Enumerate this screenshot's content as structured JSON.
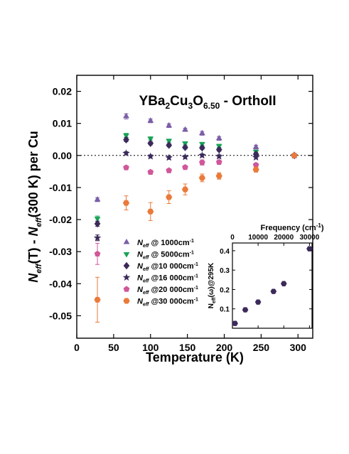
{
  "chart_data": [
    {
      "type": "scatter",
      "title": "YBa2Cu3O6.50 - OrthoII",
      "title_parts": {
        "pre": "YBa",
        "s1": "2",
        "m1": "Cu",
        "s2": "3",
        "m2": "O",
        "s3": "6.50",
        "post": " - OrthoII"
      },
      "xlabel": "Temperature (K)",
      "ylabel": {
        "n1": "N",
        "s1": "eff",
        "m1": "(T) - ",
        "n2": "N",
        "s2": "eff",
        "m2": "(300 K) per Cu"
      },
      "xlim": [
        0,
        320
      ],
      "ylim": [
        -0.057,
        0.025
      ],
      "x_ticks": [
        0,
        50,
        100,
        150,
        200,
        250,
        300
      ],
      "x_tick_labels": [
        "0",
        "50",
        "100",
        "150",
        "200",
        "250",
        "300"
      ],
      "y_ticks": [
        -0.05,
        -0.04,
        -0.03,
        -0.02,
        -0.01,
        0.0,
        0.01,
        0.02
      ],
      "y_tick_labels": [
        "-0.05",
        "-0.04",
        "-0.03",
        "-0.02",
        "-0.01",
        "0.00",
        "0.01",
        "0.02"
      ],
      "zero_line": "dotted",
      "legend_placement": "bottom-left",
      "series": [
        {
          "legend_sub": "eff",
          "legend_rest": " @ 1000cm",
          "legend_sup": "-1",
          "marker": "triangle-up",
          "color": "#7b5ea7",
          "x": [
            28,
            67,
            100,
            125,
            147,
            170,
            193,
            243,
            295
          ],
          "y": [
            -0.0138,
            0.0122,
            0.0108,
            0.0093,
            0.008,
            0.0069,
            0.0053,
            0.0026,
            0.0
          ],
          "yerr": [
            0.0006,
            0.0008,
            0.0006,
            0.0006,
            0.0005,
            0.0006,
            0.0006,
            0.0006,
            0.0004
          ]
        },
        {
          "legend_sub": "eff",
          "legend_rest": " @ 5000cm",
          "legend_sup": "-1",
          "marker": "triangle-down",
          "color": "#1aa358",
          "x": [
            28,
            67,
            100,
            125,
            147,
            170,
            193,
            243,
            295
          ],
          "y": [
            -0.0197,
            0.0063,
            0.0053,
            0.0046,
            0.0038,
            0.0036,
            0.003,
            0.0012,
            0.0
          ],
          "yerr": [
            0.0008,
            0.0006,
            0.0005,
            0.0005,
            0.0005,
            0.0005,
            0.0005,
            0.0005,
            0.0004
          ]
        },
        {
          "legend_sub": "eff",
          "legend_rest": " @10 000cm",
          "legend_sup": "-1",
          "marker": "diamond",
          "color": "#3b2a5a",
          "x": [
            28,
            67,
            100,
            125,
            147,
            170,
            193,
            243,
            295
          ],
          "y": [
            -0.0213,
            0.0049,
            0.0038,
            0.0032,
            0.0025,
            0.0024,
            0.0018,
            0.0004,
            0.0
          ],
          "yerr": [
            0.0008,
            0.0006,
            0.0005,
            0.0005,
            0.0005,
            0.0005,
            0.0005,
            0.0005,
            0.0004
          ]
        },
        {
          "legend_sub": "eff",
          "legend_rest": " @16 000cm",
          "legend_sup": "-1",
          "marker": "star",
          "color": "#3b2a5a",
          "x": [
            28,
            67,
            100,
            125,
            147,
            170,
            193,
            243,
            295
          ],
          "y": [
            -0.0257,
            0.0007,
            -0.0003,
            -0.0007,
            -0.0005,
            0.0,
            -0.0003,
            -0.0006,
            0.0
          ],
          "yerr": [
            0.0009,
            0.0005,
            0.0005,
            0.0005,
            0.0005,
            0.0005,
            0.0005,
            0.0005,
            0.0004
          ]
        },
        {
          "legend_sub": "eff",
          "legend_rest": " @20 000cm",
          "legend_sup": "-1",
          "marker": "pentagon",
          "color": "#d0579a",
          "x": [
            28,
            67,
            100,
            125,
            147,
            170,
            193,
            243,
            295
          ],
          "y": [
            -0.0307,
            -0.0038,
            -0.0052,
            -0.0047,
            -0.0037,
            -0.0022,
            -0.0021,
            -0.003,
            0.0
          ],
          "yerr": [
            0.0033,
            0.0006,
            0.0006,
            0.0006,
            0.0006,
            0.0008,
            0.0006,
            0.0006,
            0.0004
          ]
        },
        {
          "legend_sub": "eff",
          "legend_rest": " @30 000cm",
          "legend_sup": "-1",
          "marker": "hexagon",
          "color": "#ea7a3a",
          "x": [
            28,
            67,
            100,
            125,
            147,
            170,
            193,
            243,
            295
          ],
          "y": [
            -0.045,
            -0.0148,
            -0.0175,
            -0.013,
            -0.0106,
            -0.007,
            -0.0064,
            -0.0044,
            0.0
          ],
          "yerr": [
            0.007,
            0.0022,
            0.0028,
            0.002,
            0.0017,
            0.0012,
            0.001,
            0.0008,
            0.0004
          ]
        }
      ]
    },
    {
      "type": "scatter",
      "xlabel": "Frequency (cm",
      "xlabel_sup": "-1",
      "xlabel_close": ")",
      "ylabel": {
        "n": "N",
        "s1": "eff",
        "rest": "(ω)@295K"
      },
      "x_axis_position": "top",
      "xlim": [
        0,
        31000
      ],
      "ylim": [
        0.0,
        0.44
      ],
      "x_ticks": [
        0,
        10000,
        20000,
        30000
      ],
      "x_tick_labels": [
        "0",
        "10000",
        "20000",
        "30000"
      ],
      "y_ticks": [
        0.1,
        0.2,
        0.3,
        0.4
      ],
      "y_tick_labels": [
        "0.1",
        "0.2",
        "0.3",
        "0.4"
      ],
      "series": [
        {
          "marker": "hexagon",
          "color": "#3b2a5a",
          "x": [
            1000,
            5000,
            10000,
            16000,
            20000,
            30000
          ],
          "y": [
            0.025,
            0.095,
            0.135,
            0.19,
            0.23,
            0.41
          ]
        }
      ]
    }
  ]
}
